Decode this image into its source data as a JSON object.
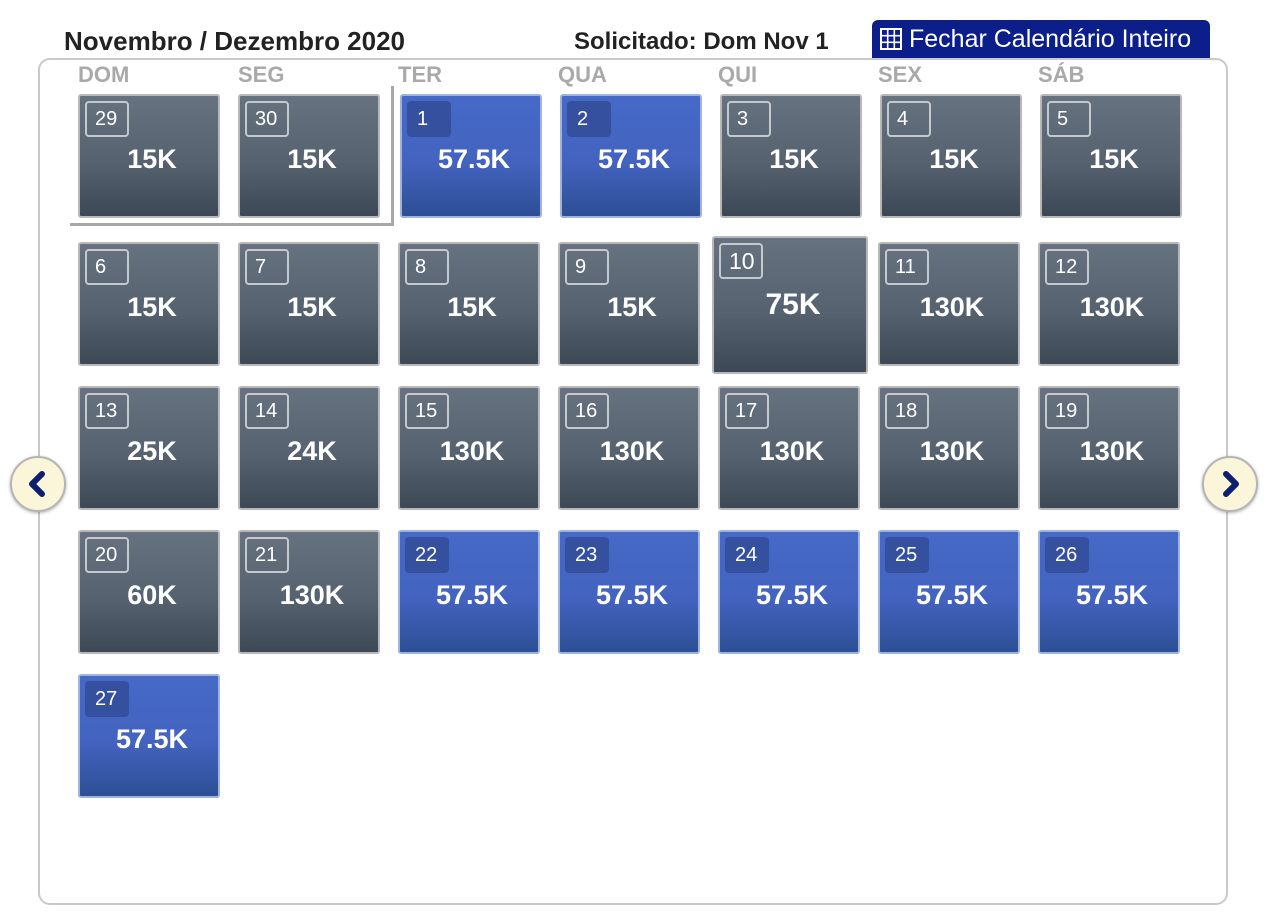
{
  "header": {
    "month_title": "Novembro / Dezembro 2020",
    "requested_label": "Solicitado: Dom Nov 1",
    "close_button_label": "Fechar Calendário Inteiro"
  },
  "weekdays": [
    "DOM",
    "SEG",
    "TER",
    "QUA",
    "QUI",
    "SEX",
    "SÁB"
  ],
  "cells": [
    {
      "day": "29",
      "price": "15K",
      "style": "gray"
    },
    {
      "day": "30",
      "price": "15K",
      "style": "gray"
    },
    {
      "day": "1",
      "price": "57.5K",
      "style": "blue"
    },
    {
      "day": "2",
      "price": "57.5K",
      "style": "blue"
    },
    {
      "day": "3",
      "price": "15K",
      "style": "gray"
    },
    {
      "day": "4",
      "price": "15K",
      "style": "gray"
    },
    {
      "day": "5",
      "price": "15K",
      "style": "gray"
    },
    {
      "day": "6",
      "price": "15K",
      "style": "gray"
    },
    {
      "day": "7",
      "price": "15K",
      "style": "gray"
    },
    {
      "day": "8",
      "price": "15K",
      "style": "gray"
    },
    {
      "day": "9",
      "price": "15K",
      "style": "gray"
    },
    {
      "day": "10",
      "price": "75K",
      "style": "gray-hover"
    },
    {
      "day": "11",
      "price": "130K",
      "style": "gray"
    },
    {
      "day": "12",
      "price": "130K",
      "style": "gray"
    },
    {
      "day": "13",
      "price": "25K",
      "style": "gray"
    },
    {
      "day": "14",
      "price": "24K",
      "style": "gray"
    },
    {
      "day": "15",
      "price": "130K",
      "style": "gray"
    },
    {
      "day": "16",
      "price": "130K",
      "style": "gray"
    },
    {
      "day": "17",
      "price": "130K",
      "style": "gray"
    },
    {
      "day": "18",
      "price": "130K",
      "style": "gray"
    },
    {
      "day": "19",
      "price": "130K",
      "style": "gray"
    },
    {
      "day": "20",
      "price": "60K",
      "style": "gray"
    },
    {
      "day": "21",
      "price": "130K",
      "style": "gray"
    },
    {
      "day": "22",
      "price": "57.5K",
      "style": "blue"
    },
    {
      "day": "23",
      "price": "57.5K",
      "style": "blue"
    },
    {
      "day": "24",
      "price": "57.5K",
      "style": "blue"
    },
    {
      "day": "25",
      "price": "57.5K",
      "style": "blue"
    },
    {
      "day": "26",
      "price": "57.5K",
      "style": "blue"
    },
    {
      "day": "27",
      "price": "57.5K",
      "style": "blue"
    }
  ],
  "nav": {
    "prev_icon": "chevron-left-icon",
    "next_icon": "chevron-right-icon"
  },
  "colors": {
    "button_bg": "#0b1e8a",
    "cell_gray": "#56626f",
    "cell_blue": "#4363bf"
  }
}
